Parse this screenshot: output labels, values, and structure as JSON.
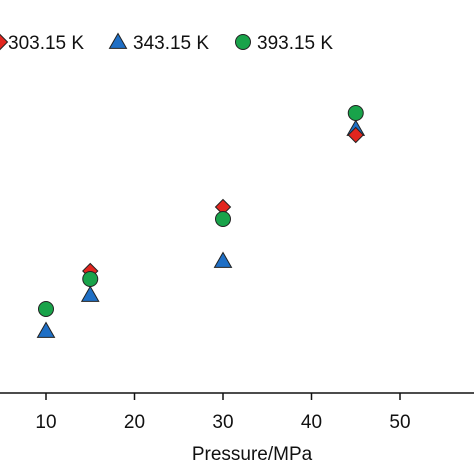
{
  "chart_data": {
    "type": "scatter",
    "title": "",
    "xlabel": "Pressure/MPa",
    "ylabel": "",
    "xlim": [
      0,
      60
    ],
    "ylim": [
      0,
      10
    ],
    "xticks": [
      "10",
      "20",
      "30",
      "40",
      "50"
    ],
    "legend_position": "top",
    "grid": false,
    "series": [
      {
        "name": "303.15 K",
        "marker": "diamond",
        "color": "#e2261f",
        "points": [
          [
            15,
            3.05
          ],
          [
            30,
            4.65
          ],
          [
            45,
            6.45
          ]
        ]
      },
      {
        "name": "343.15 K",
        "marker": "triangle",
        "color": "#1f6fc5",
        "points": [
          [
            10,
            1.55
          ],
          [
            15,
            2.45
          ],
          [
            30,
            3.3
          ],
          [
            45,
            6.6
          ]
        ]
      },
      {
        "name": "393.15 K",
        "marker": "circle",
        "color": "#19a34a",
        "points": [
          [
            10,
            2.1
          ],
          [
            15,
            2.85
          ],
          [
            30,
            4.35
          ],
          [
            45,
            7.0
          ]
        ]
      }
    ]
  }
}
